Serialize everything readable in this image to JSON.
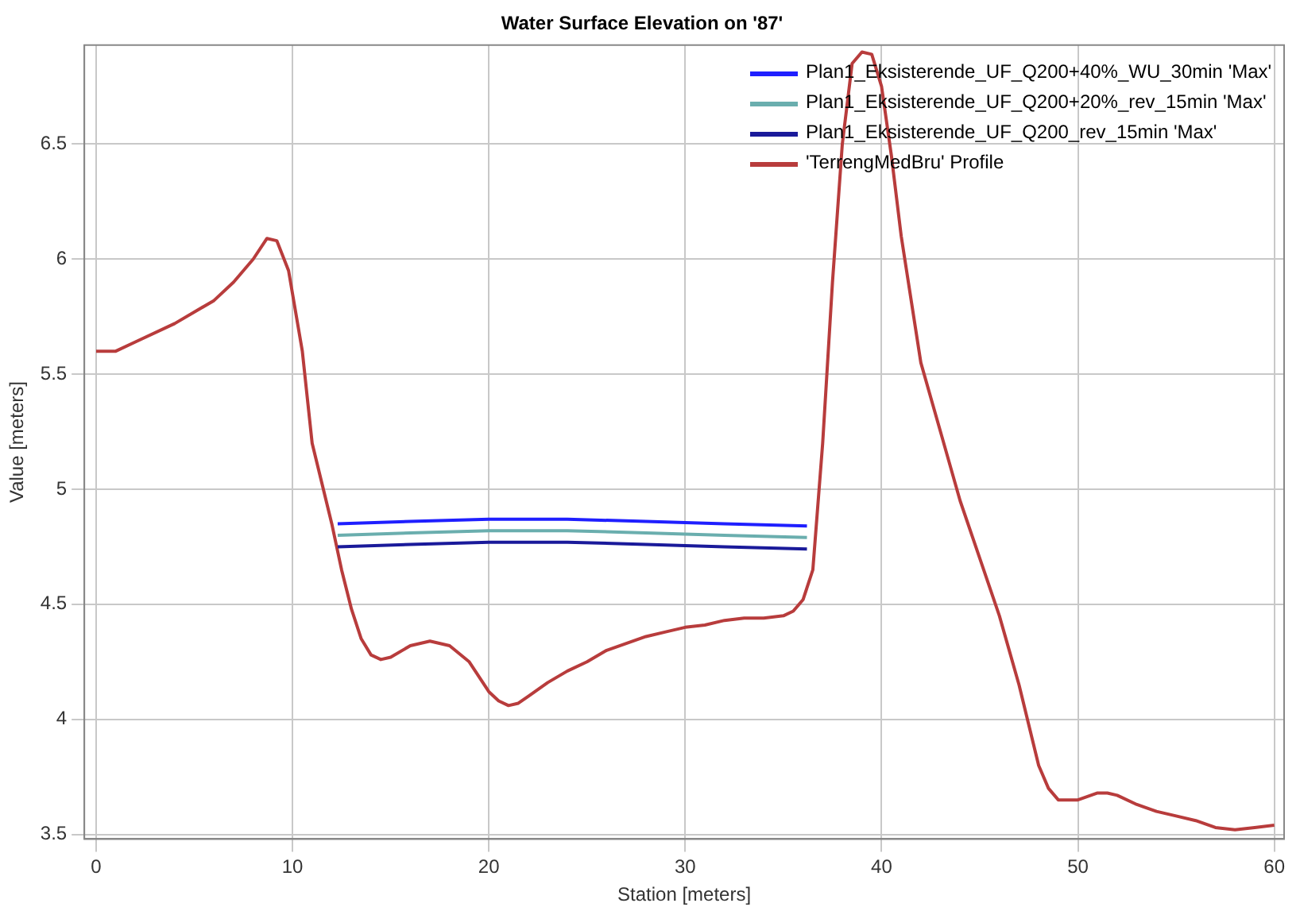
{
  "chart_data": {
    "type": "line",
    "title": "Water Surface Elevation on '87'",
    "xlabel": "Station [meters]",
    "ylabel": "Value [meters]",
    "xlim": [
      -0.6,
      60.5
    ],
    "xticks": [
      0,
      10,
      20,
      30,
      40,
      50,
      60
    ],
    "ylim": [
      3.48,
      6.93
    ],
    "yticks": [
      3.5,
      4,
      4.5,
      5,
      5.5,
      6,
      6.5
    ],
    "grid": true,
    "legend": "top right",
    "marker": "none",
    "line_style": "solid",
    "series": [
      {
        "name": "Plan1_Eksisterende_UF_Q200+40%_WU_30min 'Max'",
        "color": "#1f1fff",
        "x": [
          12.3,
          16,
          20,
          24,
          28,
          32,
          36.2
        ],
        "values": [
          4.85,
          4.86,
          4.87,
          4.87,
          4.86,
          4.85,
          4.84
        ]
      },
      {
        "name": "Plan1_Eksisterende_UF_Q200+20%_rev_15min 'Max'",
        "color": "#6aaeae",
        "x": [
          12.3,
          16,
          20,
          24,
          28,
          32,
          36.2
        ],
        "values": [
          4.8,
          4.81,
          4.82,
          4.82,
          4.81,
          4.8,
          4.79
        ]
      },
      {
        "name": "Plan1_Eksisterende_UF_Q200_rev_15min 'Max'",
        "color": "#1a1a9a",
        "x": [
          12.3,
          16,
          20,
          24,
          28,
          32,
          36.2
        ],
        "values": [
          4.75,
          4.76,
          4.77,
          4.77,
          4.76,
          4.75,
          4.74
        ]
      },
      {
        "name": "'TerrengMedBru' Profile",
        "color": "#b83c3c",
        "x": [
          0,
          1,
          2,
          4,
          6,
          7,
          8,
          8.7,
          9.2,
          9.8,
          10.5,
          11,
          12,
          12.5,
          13,
          13.5,
          14,
          14.5,
          15,
          16,
          17,
          18,
          19,
          20,
          20.5,
          21,
          21.5,
          22,
          23,
          24,
          25,
          26,
          27,
          28,
          29,
          30,
          31,
          32,
          33,
          34,
          35,
          35.5,
          36,
          36.5,
          37,
          37.5,
          38,
          38.5,
          39,
          39.5,
          40,
          40.5,
          41,
          42,
          43,
          44,
          45,
          46,
          47,
          48,
          48.5,
          49,
          50,
          51,
          51.5,
          52,
          53,
          54,
          55,
          56,
          57,
          58,
          59,
          60
        ],
        "values": [
          5.6,
          5.6,
          5.64,
          5.72,
          5.82,
          5.9,
          6.0,
          6.09,
          6.08,
          5.95,
          5.6,
          5.2,
          4.85,
          4.65,
          4.48,
          4.35,
          4.28,
          4.26,
          4.27,
          4.32,
          4.34,
          4.32,
          4.25,
          4.12,
          4.08,
          4.06,
          4.07,
          4.1,
          4.16,
          4.21,
          4.25,
          4.3,
          4.33,
          4.36,
          4.38,
          4.4,
          4.41,
          4.43,
          4.44,
          4.44,
          4.45,
          4.47,
          4.52,
          4.65,
          5.2,
          5.9,
          6.5,
          6.85,
          6.9,
          6.89,
          6.75,
          6.45,
          6.1,
          5.55,
          5.25,
          4.95,
          4.7,
          4.45,
          4.15,
          3.8,
          3.7,
          3.65,
          3.65,
          3.68,
          3.68,
          3.67,
          3.63,
          3.6,
          3.58,
          3.56,
          3.53,
          3.52,
          3.53,
          3.54
        ]
      }
    ]
  }
}
